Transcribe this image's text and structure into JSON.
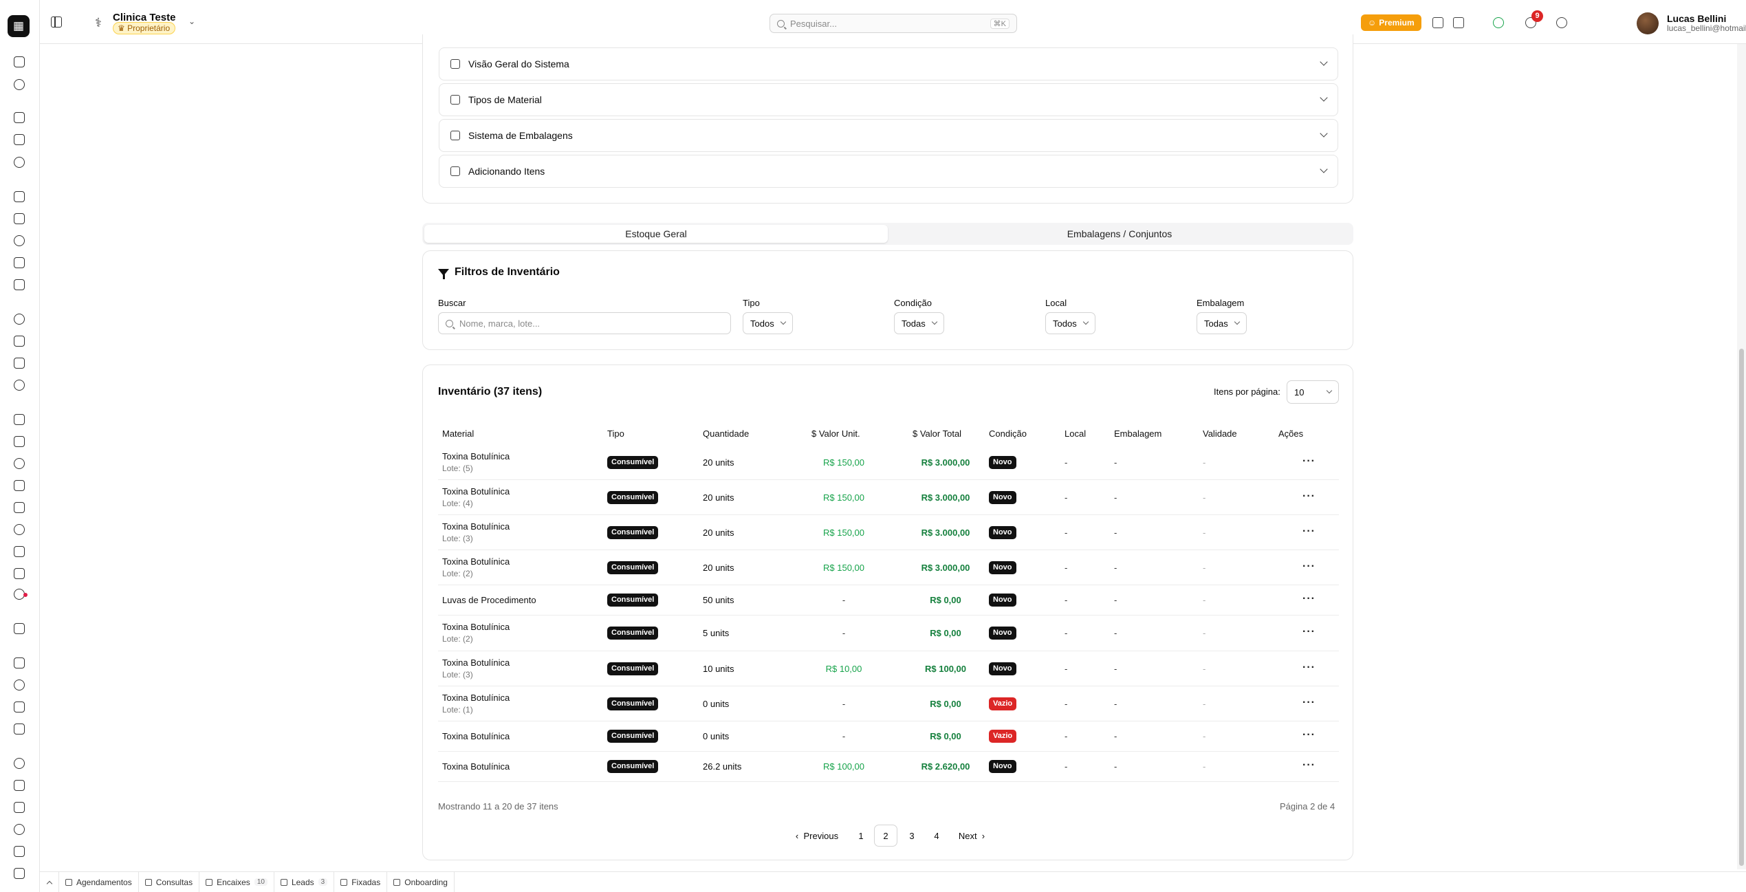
{
  "header": {
    "clinic_name": "Clinica Teste",
    "clinic_role": "Proprietário",
    "search_placeholder": "Pesquisar...",
    "search_shortcut": "⌘K",
    "premium_label": "Premium",
    "notification_count": "9",
    "user_name": "Lucas Bellini",
    "user_email": "lucas_bellini@hotmail.com.br"
  },
  "accordion": {
    "items": [
      {
        "label": "Visão Geral do Sistema",
        "icon": "building-icon"
      },
      {
        "label": "Tipos de Material",
        "icon": "package-icon"
      },
      {
        "label": "Sistema de Embalagens",
        "icon": "package-icon"
      },
      {
        "label": "Adicionando Itens",
        "icon": "cart-icon"
      }
    ]
  },
  "tabs": [
    "Estoque Geral",
    "Embalagens / Conjuntos"
  ],
  "filters": {
    "title": "Filtros de Inventário",
    "buscar_label": "Buscar",
    "buscar_placeholder": "Nome, marca, lote...",
    "tipo_label": "Tipo",
    "tipo_value": "Todos",
    "condicao_label": "Condição",
    "condicao_value": "Todas",
    "local_label": "Local",
    "local_value": "Todos",
    "embalagem_label": "Embalagem",
    "embalagem_value": "Todas"
  },
  "inventory": {
    "title": "Inventário (37 itens)",
    "items_per_page_label": "Itens por página:",
    "items_per_page_value": "10",
    "columns": [
      "Material",
      "Tipo",
      "Quantidade",
      "Valor Unit.",
      "Valor Total",
      "Condição",
      "Local",
      "Embalagem",
      "Validade",
      "Ações"
    ],
    "rows": [
      {
        "name": "Toxina Botulínica",
        "lote": "Lote: (5)",
        "tipo": "Consumível",
        "quantidade": "20 units",
        "valor_unit": "R$ 150,00",
        "valor_total": "R$ 3.000,00",
        "condicao": "Novo",
        "local": "-",
        "embalagem": "-",
        "validade": "-"
      },
      {
        "name": "Toxina Botulínica",
        "lote": "Lote: (4)",
        "tipo": "Consumível",
        "quantidade": "20 units",
        "valor_unit": "R$ 150,00",
        "valor_total": "R$ 3.000,00",
        "condicao": "Novo",
        "local": "-",
        "embalagem": "-",
        "validade": "-"
      },
      {
        "name": "Toxina Botulínica",
        "lote": "Lote: (3)",
        "tipo": "Consumível",
        "quantidade": "20 units",
        "valor_unit": "R$ 150,00",
        "valor_total": "R$ 3.000,00",
        "condicao": "Novo",
        "local": "-",
        "embalagem": "-",
        "validade": "-"
      },
      {
        "name": "Toxina Botulínica",
        "lote": "Lote: (2)",
        "tipo": "Consumível",
        "quantidade": "20 units",
        "valor_unit": "R$ 150,00",
        "valor_total": "R$ 3.000,00",
        "condicao": "Novo",
        "local": "-",
        "embalagem": "-",
        "validade": "-"
      },
      {
        "name": "Luvas de Procedimento",
        "lote": "",
        "tipo": "Consumível",
        "quantidade": "50 units",
        "valor_unit": "-",
        "valor_total": "R$ 0,00",
        "condicao": "Novo",
        "local": "-",
        "embalagem": "-",
        "validade": "-"
      },
      {
        "name": "Toxina Botulínica",
        "lote": "Lote: (2)",
        "tipo": "Consumível",
        "quantidade": "5 units",
        "valor_unit": "-",
        "valor_total": "R$ 0,00",
        "condicao": "Novo",
        "local": "-",
        "embalagem": "-",
        "validade": "-"
      },
      {
        "name": "Toxina Botulínica",
        "lote": "Lote: (3)",
        "tipo": "Consumível",
        "quantidade": "10 units",
        "valor_unit": "R$ 10,00",
        "valor_total": "R$ 100,00",
        "condicao": "Novo",
        "local": "-",
        "embalagem": "-",
        "validade": "-"
      },
      {
        "name": "Toxina Botulínica",
        "lote": "Lote: (1)",
        "tipo": "Consumível",
        "quantidade": "0 units",
        "valor_unit": "-",
        "valor_total": "R$ 0,00",
        "condicao": "Vazio",
        "local": "-",
        "embalagem": "-",
        "validade": "-"
      },
      {
        "name": "Toxina Botulínica",
        "lote": "",
        "tipo": "Consumível",
        "quantidade": "0 units",
        "valor_unit": "-",
        "valor_total": "R$ 0,00",
        "condicao": "Vazio",
        "local": "-",
        "embalagem": "-",
        "validade": "-"
      },
      {
        "name": "Toxina Botulínica",
        "lote": "",
        "tipo": "Consumível",
        "quantidade": "26.2 units",
        "valor_unit": "R$ 100,00",
        "valor_total": "R$ 2.620,00",
        "condicao": "Novo",
        "local": "-",
        "embalagem": "-",
        "validade": "-"
      }
    ],
    "showing_text": "Mostrando 11 a 20 de 37 itens",
    "page_info": "Página 2 de 4",
    "pagination": {
      "previous": "Previous",
      "pages": [
        "1",
        "2",
        "3",
        "4"
      ],
      "current": "2",
      "next": "Next"
    }
  },
  "bottom_bar": {
    "items": [
      {
        "label": "Agendamentos",
        "count": ""
      },
      {
        "label": "Consultas",
        "count": ""
      },
      {
        "label": "Encaixes",
        "count": "10"
      },
      {
        "label": "Leads",
        "count": "3"
      },
      {
        "label": "Fixadas",
        "count": ""
      },
      {
        "label": "Onboarding",
        "count": ""
      }
    ]
  },
  "colors": {
    "accent_green": "#16a34a",
    "premium": "#f59e0b",
    "badge_dark": "#111111",
    "badge_red": "#dc2626"
  }
}
